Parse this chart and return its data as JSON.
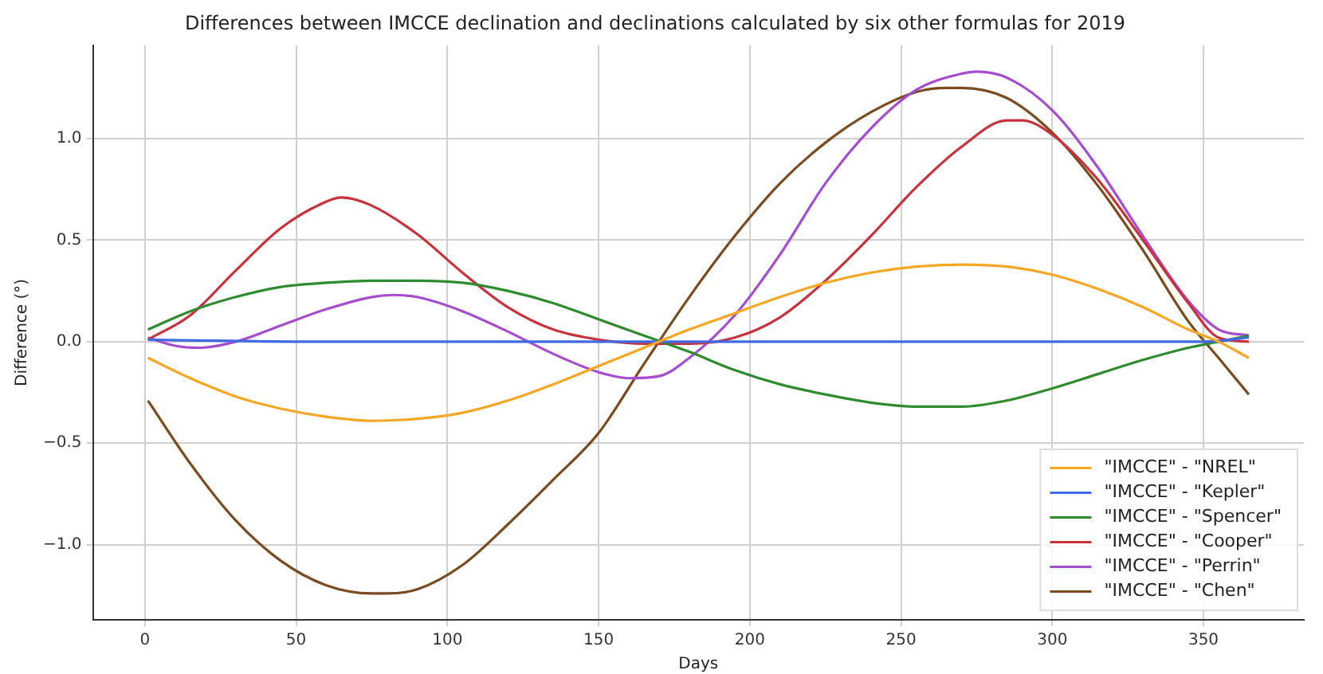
{
  "chart_data": {
    "type": "line",
    "title": "Differences between IMCCE declination and declinations calculated by six other formulas for 2019",
    "xlabel": "Days",
    "ylabel": "Difference (°)",
    "xlim": [
      -17.2,
      383.2
    ],
    "ylim": [
      -1.37,
      1.46
    ],
    "xticks": [
      0,
      50,
      100,
      150,
      200,
      250,
      300,
      350
    ],
    "yticks": [
      {
        "value": -1.0,
        "label": "−1.0"
      },
      {
        "value": -0.5,
        "label": "−0.5"
      },
      {
        "value": 0.0,
        "label": "0.0"
      },
      {
        "value": 0.5,
        "label": "0.5"
      },
      {
        "value": 1.0,
        "label": "1.0"
      }
    ],
    "grid": true,
    "legend": "bottom right",
    "marker": "none",
    "line_style": "solid",
    "series": [
      {
        "name": "\"IMCCE\" - \"NREL\"",
        "color": "#f5a623",
        "x": [
          1,
          15,
          30,
          45,
          60,
          75,
          90,
          105,
          120,
          135,
          150,
          165,
          180,
          195,
          210,
          225,
          240,
          255,
          270,
          285,
          300,
          315,
          330,
          345,
          355,
          365
        ],
        "values": [
          -0.08,
          -0.18,
          -0.27,
          -0.33,
          -0.37,
          -0.39,
          -0.38,
          -0.35,
          -0.29,
          -0.21,
          -0.12,
          -0.03,
          0.06,
          0.14,
          0.22,
          0.29,
          0.34,
          0.37,
          0.38,
          0.37,
          0.33,
          0.26,
          0.17,
          0.06,
          0.0,
          -0.08
        ]
      },
      {
        "name": "\"IMCCE\" - \"Kepler\"",
        "color": "#4169e1",
        "x": [
          1,
          50,
          100,
          150,
          200,
          250,
          300,
          350,
          365
        ],
        "values": [
          0.01,
          0.0,
          0.0,
          0.0,
          0.0,
          0.0,
          0.0,
          0.0,
          0.02
        ]
      },
      {
        "name": "\"IMCCE\" - \"Spencer\"",
        "color": "#2e8b2e",
        "x": [
          1,
          15,
          30,
          45,
          60,
          75,
          90,
          105,
          120,
          135,
          150,
          165,
          180,
          195,
          210,
          225,
          240,
          255,
          270,
          285,
          300,
          315,
          330,
          345,
          355,
          365
        ],
        "values": [
          0.06,
          0.15,
          0.22,
          0.27,
          0.29,
          0.3,
          0.3,
          0.29,
          0.25,
          0.19,
          0.11,
          0.03,
          -0.05,
          -0.14,
          -0.21,
          -0.26,
          -0.3,
          -0.32,
          -0.32,
          -0.29,
          -0.23,
          -0.16,
          -0.09,
          -0.03,
          0.0,
          0.03
        ]
      },
      {
        "name": "\"IMCCE\" - \"Cooper\"",
        "color": "#c8323c",
        "x": [
          1,
          15,
          30,
          45,
          60,
          65,
          75,
          90,
          105,
          120,
          135,
          150,
          165,
          180,
          195,
          210,
          225,
          240,
          255,
          270,
          285,
          290,
          300,
          315,
          330,
          345,
          355,
          365
        ],
        "values": [
          0.01,
          0.13,
          0.35,
          0.56,
          0.69,
          0.71,
          0.67,
          0.53,
          0.34,
          0.17,
          0.06,
          0.01,
          -0.01,
          -0.01,
          0.02,
          0.12,
          0.3,
          0.52,
          0.76,
          0.96,
          1.09,
          1.09,
          1.02,
          0.8,
          0.5,
          0.19,
          0.02,
          0.0
        ]
      },
      {
        "name": "\"IMCCE\" - \"Perrin\"",
        "color": "#a64ccf",
        "x": [
          1,
          10,
          18,
          30,
          45,
          60,
          75,
          82,
          90,
          105,
          120,
          135,
          150,
          160,
          170,
          180,
          195,
          210,
          225,
          240,
          255,
          270,
          275,
          285,
          300,
          315,
          330,
          345,
          355,
          365
        ],
        "values": [
          0.02,
          -0.02,
          -0.03,
          0.0,
          0.08,
          0.16,
          0.22,
          0.23,
          0.22,
          0.15,
          0.05,
          -0.06,
          -0.15,
          -0.18,
          -0.17,
          -0.08,
          0.13,
          0.43,
          0.78,
          1.05,
          1.24,
          1.32,
          1.33,
          1.3,
          1.14,
          0.86,
          0.52,
          0.2,
          0.06,
          0.03
        ]
      },
      {
        "name": "\"IMCCE\" - \"Chen\"",
        "color": "#7b4a1e",
        "x": [
          1,
          15,
          30,
          45,
          60,
          75,
          80,
          90,
          105,
          120,
          135,
          150,
          165,
          180,
          195,
          210,
          225,
          240,
          255,
          265,
          270,
          285,
          300,
          315,
          330,
          345,
          355,
          365
        ],
        "values": [
          -0.29,
          -0.6,
          -0.88,
          -1.08,
          -1.2,
          -1.24,
          -1.24,
          -1.22,
          -1.1,
          -0.9,
          -0.68,
          -0.45,
          -0.11,
          0.22,
          0.52,
          0.78,
          0.98,
          1.13,
          1.23,
          1.25,
          1.25,
          1.2,
          1.03,
          0.77,
          0.45,
          0.1,
          -0.08,
          -0.26
        ]
      }
    ]
  }
}
